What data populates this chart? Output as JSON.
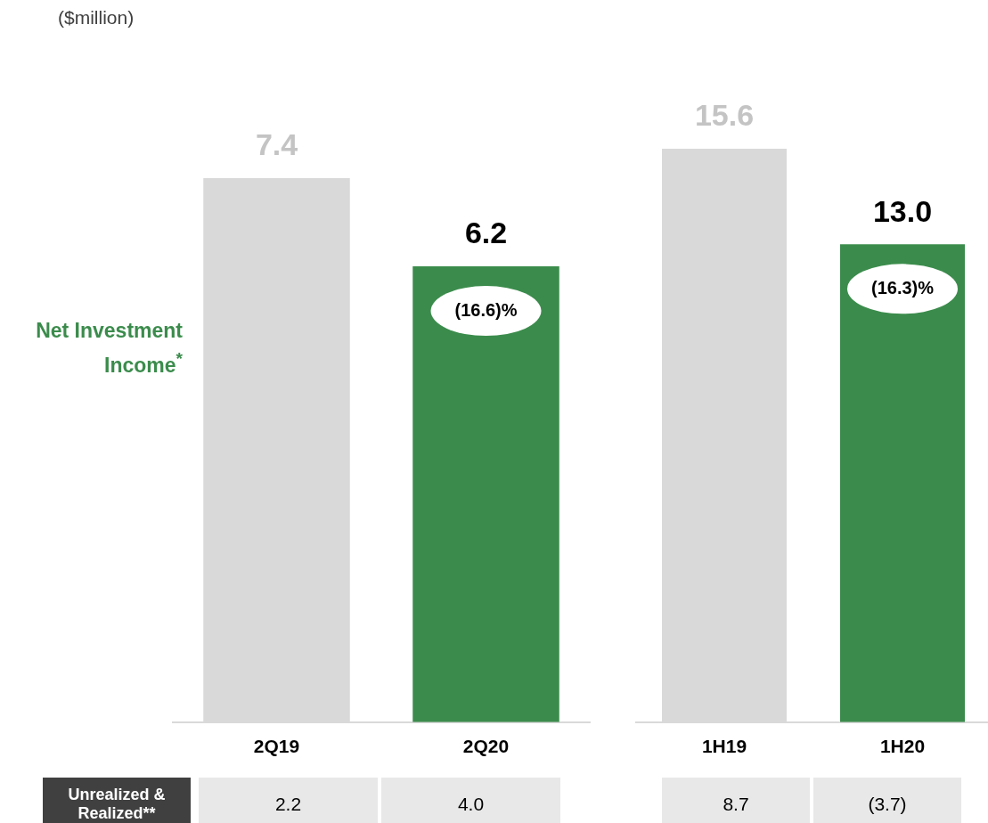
{
  "chart_data": [
    {
      "type": "bar",
      "title": "($million)",
      "ylabel": "Net Investment Income$^{*}$",
      "categories": [
        "2Q19",
        "2Q20"
      ],
      "values": [
        7.4,
        6.2
      ],
      "value_labels": [
        "7.4",
        "6.2"
      ],
      "colors": [
        "#d9d9d9",
        "#3b8c4c"
      ],
      "legend": false,
      "grid": false,
      "annotations": [
        "(16.6)%",
        "Unrealized & Realized**",
        "2.2",
        "4.0"
      ]
    },
    {
      "type": "bar",
      "categories": [
        "1H19",
        "1H20"
      ],
      "values": [
        15.6,
        13.0
      ],
      "value_labels": [
        "15.6",
        "13.0"
      ],
      "colors": [
        "#d9d9d9",
        "#3b8c4c"
      ],
      "legend": false,
      "grid": false,
      "annotations": [
        "(16.3)%",
        "8.7",
        "(3.7)"
      ]
    }
  ]
}
